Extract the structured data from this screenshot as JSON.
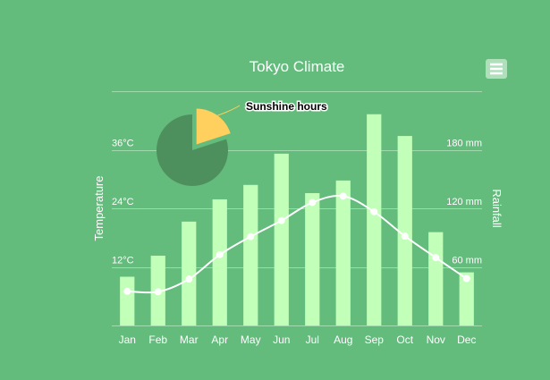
{
  "chart_data": {
    "type": "bar",
    "title": "Tokyo Climate",
    "categories": [
      "Jan",
      "Feb",
      "Mar",
      "Apr",
      "May",
      "Jun",
      "Jul",
      "Aug",
      "Sep",
      "Oct",
      "Nov",
      "Dec"
    ],
    "series": [
      {
        "name": "",
        "type": "bar",
        "axis": "right",
        "values": [
          49.9,
          71.5,
          106.4,
          129.2,
          144.0,
          176.0,
          135.6,
          148.5,
          216.4,
          194.1,
          95.6,
          54.4
        ]
      },
      {
        "name": "",
        "type": "line",
        "axis": "left",
        "values": [
          7.0,
          6.9,
          9.5,
          14.5,
          18.2,
          21.5,
          25.2,
          26.5,
          23.3,
          18.3,
          13.9,
          9.6
        ]
      }
    ],
    "y_left": {
      "label": "Temperature",
      "ticks": [
        "12°C",
        "24°C",
        "36°C"
      ],
      "tick_values": [
        12,
        24,
        36
      ],
      "ylim": [
        0,
        48
      ]
    },
    "y_right": {
      "label": "Rainfall",
      "ticks": [
        "60 mm",
        "120 mm",
        "180 mm"
      ],
      "tick_values": [
        60,
        120,
        180
      ],
      "ylim": [
        0,
        240
      ]
    },
    "pie": {
      "label": "Sunshine hours",
      "fraction": 0.2,
      "slice_color": "#ffd05e",
      "rest_color": "#4e8f5e"
    },
    "grid": true,
    "colors": {
      "background": "#63bb7c",
      "bar": "#c2ffb8",
      "line": "#ffffff",
      "text": "#ffffff",
      "grid": "#9fd9ad"
    }
  },
  "menu": {
    "icon": "hamburger-menu-icon"
  }
}
